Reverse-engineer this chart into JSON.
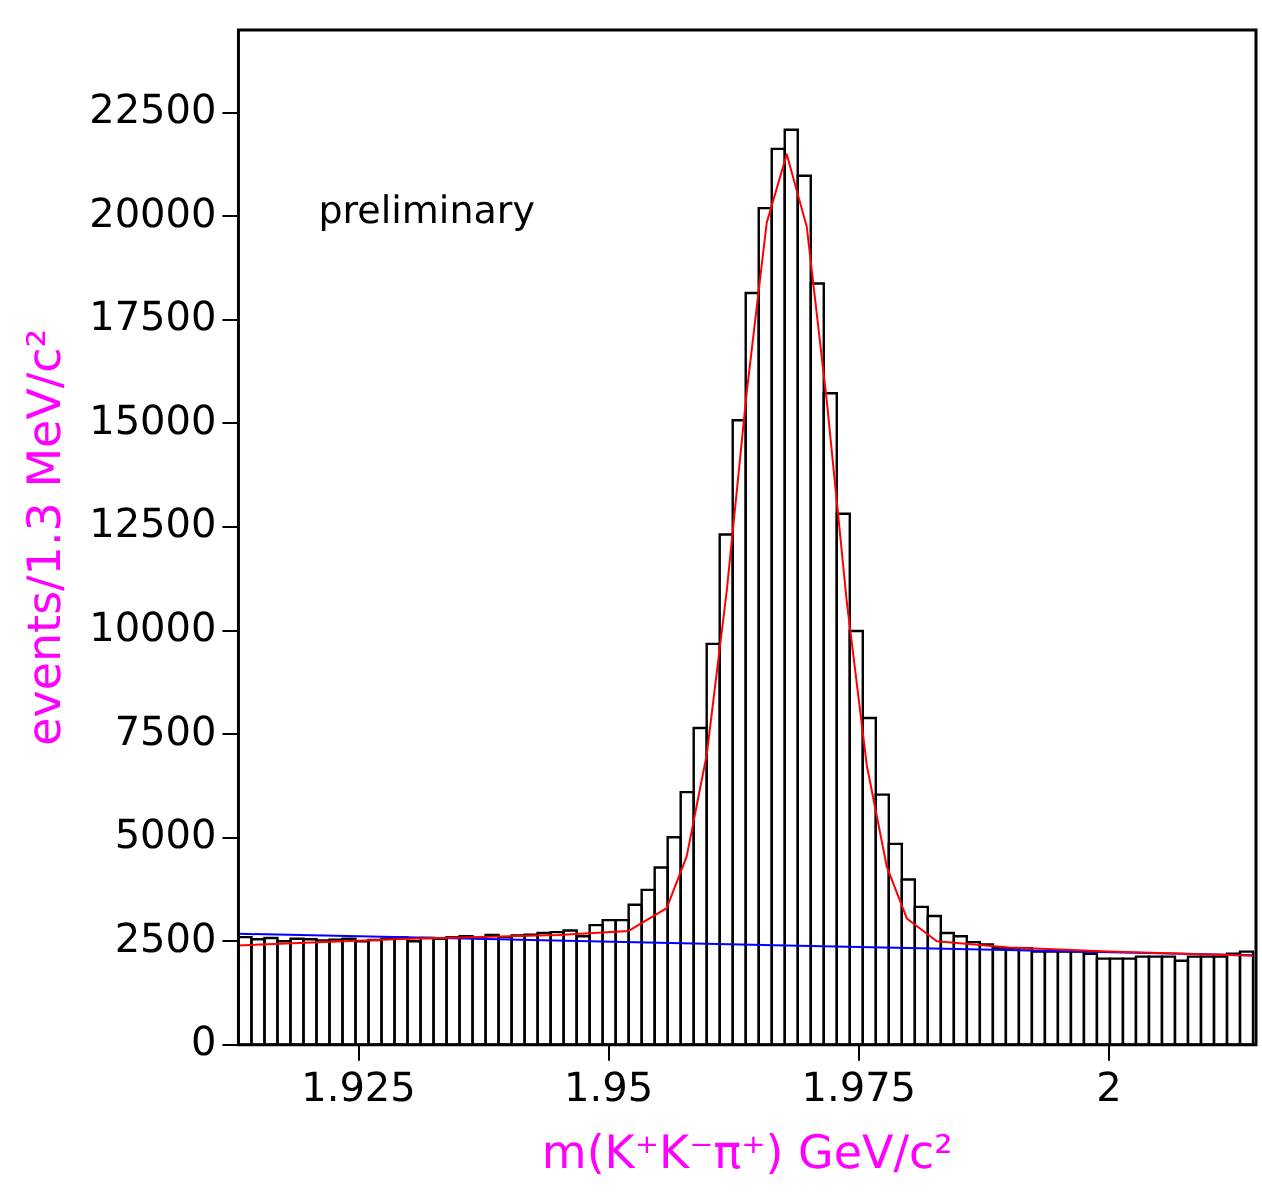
{
  "chart_data": {
    "type": "histogram",
    "xlabel": "m(K⁺K⁻π⁺) GeV/c²",
    "ylabel": "events/1.3 MeV/c²",
    "annotations": [
      "preliminary"
    ],
    "bins": [
      1.913,
      1.9143,
      1.9156,
      1.9169,
      1.9182,
      1.9195,
      1.9208,
      1.9221,
      1.9234,
      1.9247,
      1.926,
      1.9273,
      1.9286,
      1.9299,
      1.9312,
      1.9325,
      1.9338,
      1.9351,
      1.9364,
      1.9377,
      1.939,
      1.9403,
      1.9416,
      1.9429,
      1.9442,
      1.9455,
      1.9468,
      1.9481,
      1.9494,
      1.9507,
      1.952,
      1.9533,
      1.9546,
      1.9559,
      1.9572,
      1.9585,
      1.9598,
      1.9611,
      1.9624,
      1.9637,
      1.965,
      1.9663,
      1.9676,
      1.9689,
      1.9702,
      1.9715,
      1.9728,
      1.9741,
      1.9754,
      1.9767,
      1.978,
      1.9793,
      1.9806,
      1.9819,
      1.9832,
      1.9845,
      1.9858,
      1.9871,
      1.9884,
      1.9897,
      1.991,
      1.9923,
      1.9936,
      1.9949,
      1.9962,
      1.9975,
      1.9988,
      2.0001,
      2.0014,
      2.0027,
      2.004,
      2.0053,
      2.0066,
      2.0079,
      2.0092,
      2.0105,
      2.0118,
      2.0131,
      2.0144
    ],
    "values": [
      2600,
      2550,
      2580,
      2500,
      2560,
      2550,
      2520,
      2540,
      2560,
      2500,
      2530,
      2560,
      2590,
      2500,
      2580,
      2560,
      2600,
      2620,
      2580,
      2650,
      2600,
      2640,
      2660,
      2700,
      2720,
      2760,
      2620,
      2890,
      3010,
      3010,
      3380,
      3740,
      4280,
      5010,
      6100,
      7650,
      9680,
      12320,
      15080,
      18150,
      20200,
      21630,
      22090,
      20980,
      18380,
      15730,
      12820,
      9990,
      7890,
      6040,
      4850,
      3990,
      3330,
      3110,
      2700,
      2620,
      2480,
      2420,
      2340,
      2330,
      2330,
      2250,
      2250,
      2250,
      2250,
      2200,
      2080,
      2080,
      2080,
      2130,
      2130,
      2130,
      2030,
      2130,
      2130,
      2130,
      2200,
      2250
    ],
    "color": "#000000",
    "series": [
      {
        "type": "line",
        "color": "#ff0000",
        "x": [
          1.913,
          1.93,
          1.945,
          1.952,
          1.9558,
          1.9578,
          1.9598,
          1.9618,
          1.9638,
          1.9658,
          1.9678,
          1.9698,
          1.9718,
          1.9738,
          1.9758,
          1.9778,
          1.9798,
          1.9828,
          1.99,
          2.0,
          2.0144
        ],
        "values": [
          2400,
          2560,
          2650,
          2750,
          3300,
          4550,
          7000,
          10950,
          15750,
          19850,
          21500,
          19750,
          15550,
          10700,
          6750,
          4300,
          3050,
          2500,
          2350,
          2250,
          2150
        ]
      },
      {
        "type": "line",
        "color": "#0000ff",
        "x": [
          1.913,
          2.0144
        ],
        "values": [
          2680,
          2160
        ]
      }
    ],
    "xlim": [
      1.913,
      2.0147
    ],
    "xticks": [
      1.925,
      1.95,
      1.975,
      2
    ],
    "ylim": [
      0,
      24500
    ],
    "yticks": [
      0,
      2500,
      5000,
      7500,
      10000,
      12500,
      15000,
      17500,
      20000,
      22500
    ],
    "grid": false,
    "legend": false,
    "marker": "none"
  }
}
